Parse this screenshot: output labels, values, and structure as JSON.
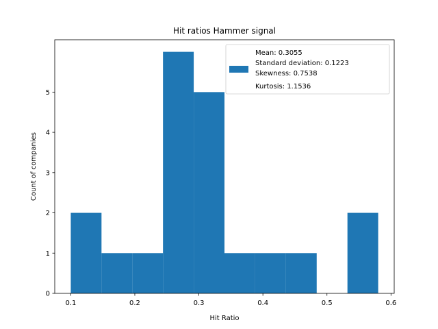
{
  "chart_data": {
    "type": "bar",
    "title": "Hit ratios Hammer signal",
    "xlabel": "Hit Ratio",
    "ylabel": "Count of companies",
    "xlim": [
      0.075,
      0.605
    ],
    "ylim": [
      0,
      6.3
    ],
    "xticks": [
      0.1,
      0.2,
      0.3,
      0.4,
      0.5,
      0.6
    ],
    "xtick_labels": [
      "0.1",
      "0.2",
      "0.3",
      "0.4",
      "0.5",
      "0.6"
    ],
    "yticks": [
      0,
      1,
      2,
      3,
      4,
      5
    ],
    "ytick_labels": [
      "0",
      "1",
      "2",
      "3",
      "4",
      "5"
    ],
    "bins": [
      {
        "x0": 0.1,
        "x1": 0.148,
        "count": 2
      },
      {
        "x0": 0.148,
        "x1": 0.196,
        "count": 1
      },
      {
        "x0": 0.196,
        "x1": 0.244,
        "count": 1
      },
      {
        "x0": 0.244,
        "x1": 0.292,
        "count": 6
      },
      {
        "x0": 0.292,
        "x1": 0.34,
        "count": 5
      },
      {
        "x0": 0.34,
        "x1": 0.388,
        "count": 1
      },
      {
        "x0": 0.388,
        "x1": 0.436,
        "count": 1
      },
      {
        "x0": 0.436,
        "x1": 0.484,
        "count": 1
      },
      {
        "x0": 0.484,
        "x1": 0.532,
        "count": 0
      },
      {
        "x0": 0.532,
        "x1": 0.58,
        "count": 2
      }
    ],
    "bar_color": "#1f77b4",
    "legend_position": "top-right",
    "legend": {
      "lines": [
        "Mean: 0.3055",
        "Standard deviation: 0.1223",
        "Skewness: 0.7538",
        "Kurtosis: 1.1536"
      ]
    },
    "grid": false
  }
}
